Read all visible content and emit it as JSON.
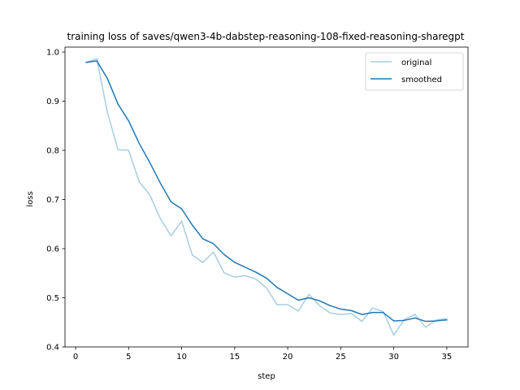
{
  "chart_data": {
    "type": "line",
    "title": "training loss of saves/qwen3-4b-dabstep-reasoning-108-fixed-reasoning-sharegpt",
    "xlabel": "step",
    "ylabel": "loss",
    "xlim": [
      -1,
      37
    ],
    "ylim": [
      0.4,
      1.01
    ],
    "xticks": [
      0,
      5,
      10,
      15,
      20,
      25,
      30,
      35
    ],
    "yticks": [
      0.4,
      0.5,
      0.6,
      0.7,
      0.8,
      0.9,
      1.0
    ],
    "grid": false,
    "legend_position": "top-right",
    "x": [
      1,
      2,
      3,
      4,
      5,
      6,
      7,
      8,
      9,
      10,
      11,
      12,
      13,
      14,
      15,
      16,
      17,
      18,
      19,
      20,
      21,
      22,
      23,
      24,
      25,
      26,
      27,
      28,
      29,
      30,
      31,
      32,
      33,
      34,
      35
    ],
    "series": [
      {
        "name": "original",
        "color": "#a6cee3",
        "values": [
          0.979,
          0.986,
          0.877,
          0.801,
          0.8,
          0.736,
          0.709,
          0.661,
          0.626,
          0.656,
          0.587,
          0.572,
          0.593,
          0.551,
          0.542,
          0.545,
          0.538,
          0.52,
          0.486,
          0.486,
          0.473,
          0.507,
          0.484,
          0.469,
          0.466,
          0.468,
          0.452,
          0.479,
          0.472,
          0.424,
          0.456,
          0.466,
          0.44,
          0.455,
          0.458
        ]
      },
      {
        "name": "smoothed",
        "color": "#1f78b4",
        "values": [
          0.979,
          0.982,
          0.946,
          0.894,
          0.86,
          0.814,
          0.775,
          0.733,
          0.695,
          0.681,
          0.648,
          0.62,
          0.61,
          0.588,
          0.572,
          0.562,
          0.552,
          0.54,
          0.521,
          0.508,
          0.495,
          0.5,
          0.494,
          0.484,
          0.477,
          0.474,
          0.466,
          0.47,
          0.47,
          0.453,
          0.454,
          0.459,
          0.452,
          0.453,
          0.455
        ]
      }
    ]
  }
}
